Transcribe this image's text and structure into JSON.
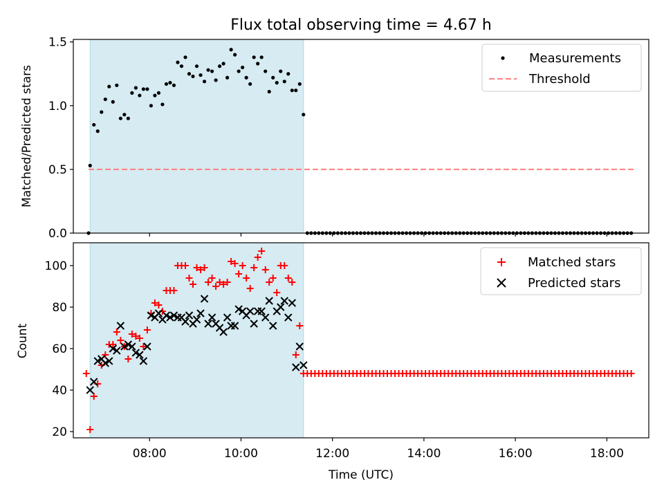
{
  "chart_data": [
    {
      "type": "scatter",
      "title": "Flux total observing time = 4.67 h",
      "ylabel": "Matched/Predicted stars",
      "xlabel": "",
      "ylim": [
        0,
        1.52
      ],
      "yticks": [
        "0.0",
        "0.5",
        "1.0",
        "1.5"
      ],
      "x_ticks": [
        "08:00",
        "10:00",
        "12:00",
        "14:00",
        "16:00",
        "18:00"
      ],
      "xlim": [
        "06:20",
        "18:55"
      ],
      "legend_position": "top-right",
      "grid": false,
      "shaded_interval": [
        "06:42",
        "11:22"
      ],
      "shade_color": "#add8e6",
      "series": [
        {
          "name": "Measurements",
          "marker": "dot",
          "color": "#000000",
          "points": [
            [
              "06:40",
              0.0
            ],
            [
              "06:42",
              0.53
            ],
            [
              "06:47",
              0.85
            ],
            [
              "06:52",
              0.8
            ],
            [
              "06:57",
              0.95
            ],
            [
              "07:02",
              1.05
            ],
            [
              "07:07",
              1.15
            ],
            [
              "07:12",
              1.03
            ],
            [
              "07:17",
              1.16
            ],
            [
              "07:22",
              0.9
            ],
            [
              "07:27",
              0.93
            ],
            [
              "07:32",
              0.9
            ],
            [
              "07:37",
              1.1
            ],
            [
              "07:42",
              1.14
            ],
            [
              "07:47",
              1.08
            ],
            [
              "07:52",
              1.13
            ],
            [
              "07:57",
              1.13
            ],
            [
              "08:02",
              1.0
            ],
            [
              "08:07",
              1.08
            ],
            [
              "08:12",
              1.1
            ],
            [
              "08:17",
              1.01
            ],
            [
              "08:22",
              1.17
            ],
            [
              "08:27",
              1.18
            ],
            [
              "08:32",
              1.16
            ],
            [
              "08:37",
              1.34
            ],
            [
              "08:42",
              1.31
            ],
            [
              "08:47",
              1.38
            ],
            [
              "08:52",
              1.25
            ],
            [
              "08:57",
              1.23
            ],
            [
              "09:02",
              1.31
            ],
            [
              "09:07",
              1.24
            ],
            [
              "09:12",
              1.19
            ],
            [
              "09:17",
              1.28
            ],
            [
              "09:22",
              1.27
            ],
            [
              "09:27",
              1.2
            ],
            [
              "09:32",
              1.31
            ],
            [
              "09:37",
              1.33
            ],
            [
              "09:42",
              1.22
            ],
            [
              "09:47",
              1.44
            ],
            [
              "09:52",
              1.4
            ],
            [
              "09:57",
              1.27
            ],
            [
              "10:02",
              1.3
            ],
            [
              "10:07",
              1.22
            ],
            [
              "10:12",
              1.17
            ],
            [
              "10:17",
              1.38
            ],
            [
              "10:22",
              1.33
            ],
            [
              "10:27",
              1.38
            ],
            [
              "10:32",
              1.27
            ],
            [
              "10:37",
              1.11
            ],
            [
              "10:42",
              1.22
            ],
            [
              "10:47",
              1.18
            ],
            [
              "10:52",
              1.27
            ],
            [
              "10:57",
              1.19
            ],
            [
              "11:02",
              1.25
            ],
            [
              "11:07",
              1.12
            ],
            [
              "11:12",
              1.12
            ],
            [
              "11:17",
              1.17
            ],
            [
              "11:22",
              0.93
            ]
          ]
        },
        {
          "name": "Threshold",
          "marker": "dashed-line",
          "color": "#ff7f7f",
          "points": [
            [
              "06:40",
              0.5
            ],
            [
              "18:35",
              0.5
            ]
          ]
        }
      ],
      "zero_points": {
        "comment_free_range": [
          "11:27",
          "18:35"
        ],
        "step_minutes": 5,
        "value": 0.0,
        "series": "Measurements"
      }
    },
    {
      "type": "scatter",
      "title": "",
      "ylabel": "Count",
      "xlabel": "Time (UTC)",
      "ylim": [
        17,
        111
      ],
      "yticks": [
        "20",
        "40",
        "60",
        "80",
        "100"
      ],
      "x_ticks": [
        "08:00",
        "10:00",
        "12:00",
        "14:00",
        "16:00",
        "18:00"
      ],
      "xlim": [
        "06:20",
        "18:55"
      ],
      "legend_position": "top-right",
      "grid": false,
      "shaded_interval": [
        "06:42",
        "11:22"
      ],
      "shade_color": "#add8e6",
      "series": [
        {
          "name": "Matched stars",
          "marker": "plus",
          "color": "#ff0000",
          "points": [
            [
              "06:37",
              48
            ],
            [
              "06:42",
              21
            ],
            [
              "06:47",
              37
            ],
            [
              "06:52",
              43
            ],
            [
              "06:57",
              52
            ],
            [
              "07:02",
              57
            ],
            [
              "07:07",
              62
            ],
            [
              "07:12",
              62
            ],
            [
              "07:17",
              68
            ],
            [
              "07:22",
              64
            ],
            [
              "07:27",
              61
            ],
            [
              "07:32",
              55
            ],
            [
              "07:37",
              67
            ],
            [
              "07:42",
              66
            ],
            [
              "07:47",
              65
            ],
            [
              "07:52",
              61
            ],
            [
              "07:57",
              69
            ],
            [
              "08:02",
              77
            ],
            [
              "08:07",
              82
            ],
            [
              "08:12",
              81
            ],
            [
              "08:17",
              78
            ],
            [
              "08:22",
              88
            ],
            [
              "08:27",
              88
            ],
            [
              "08:32",
              88
            ],
            [
              "08:37",
              100
            ],
            [
              "08:42",
              100
            ],
            [
              "08:47",
              100
            ],
            [
              "08:52",
              94
            ],
            [
              "08:57",
              91
            ],
            [
              "09:02",
              99
            ],
            [
              "09:07",
              98
            ],
            [
              "09:12",
              99
            ],
            [
              "09:17",
              92
            ],
            [
              "09:22",
              94
            ],
            [
              "09:27",
              90
            ],
            [
              "09:32",
              92
            ],
            [
              "09:37",
              91
            ],
            [
              "09:42",
              92
            ],
            [
              "09:47",
              102
            ],
            [
              "09:52",
              101
            ],
            [
              "09:57",
              96
            ],
            [
              "10:02",
              100
            ],
            [
              "10:07",
              94
            ],
            [
              "10:12",
              89
            ],
            [
              "10:17",
              99
            ],
            [
              "10:22",
              104
            ],
            [
              "10:27",
              107
            ],
            [
              "10:32",
              98
            ],
            [
              "10:37",
              92
            ],
            [
              "10:42",
              94
            ],
            [
              "10:47",
              87
            ],
            [
              "10:52",
              100
            ],
            [
              "10:57",
              100
            ],
            [
              "11:02",
              94
            ],
            [
              "11:07",
              92
            ],
            [
              "11:12",
              57
            ],
            [
              "11:17",
              71
            ],
            [
              "11:22",
              48
            ]
          ]
        },
        {
          "name": "Predicted stars",
          "marker": "x",
          "color": "#000000",
          "points": [
            [
              "06:42",
              40
            ],
            [
              "06:47",
              44
            ],
            [
              "06:52",
              54
            ],
            [
              "06:57",
              55
            ],
            [
              "07:02",
              53
            ],
            [
              "07:07",
              54
            ],
            [
              "07:12",
              60
            ],
            [
              "07:17",
              59
            ],
            [
              "07:22",
              71
            ],
            [
              "07:27",
              61
            ],
            [
              "07:32",
              62
            ],
            [
              "07:37",
              61
            ],
            [
              "07:42",
              58
            ],
            [
              "07:47",
              57
            ],
            [
              "07:52",
              54
            ],
            [
              "07:57",
              61
            ],
            [
              "08:02",
              76
            ],
            [
              "08:07",
              75
            ],
            [
              "08:12",
              77
            ],
            [
              "08:17",
              74
            ],
            [
              "08:22",
              76
            ],
            [
              "08:27",
              75
            ],
            [
              "08:32",
              76
            ],
            [
              "08:37",
              75
            ],
            [
              "08:42",
              75
            ],
            [
              "08:47",
              73
            ],
            [
              "08:52",
              76
            ],
            [
              "08:57",
              72
            ],
            [
              "09:02",
              74
            ],
            [
              "09:07",
              77
            ],
            [
              "09:12",
              84
            ],
            [
              "09:17",
              72
            ],
            [
              "09:22",
              75
            ],
            [
              "09:27",
              72
            ],
            [
              "09:32",
              70
            ],
            [
              "09:37",
              68
            ],
            [
              "09:42",
              75
            ],
            [
              "09:47",
              71
            ],
            [
              "09:52",
              71
            ],
            [
              "09:57",
              79
            ],
            [
              "10:02",
              78
            ],
            [
              "10:07",
              76
            ],
            [
              "10:12",
              78
            ],
            [
              "10:17",
              72
            ],
            [
              "10:22",
              78
            ],
            [
              "10:27",
              78
            ],
            [
              "10:32",
              75
            ],
            [
              "10:37",
              83
            ],
            [
              "10:42",
              71
            ],
            [
              "10:47",
              78
            ],
            [
              "10:52",
              80
            ],
            [
              "10:57",
              83
            ],
            [
              "11:02",
              75
            ],
            [
              "11:07",
              82
            ],
            [
              "11:12",
              51
            ],
            [
              "11:17",
              61
            ],
            [
              "11:22",
              52
            ]
          ]
        }
      ],
      "flat_points": {
        "range": [
          "11:27",
          "18:35"
        ],
        "step_minutes": 5,
        "value": 48,
        "series": "Matched stars"
      }
    }
  ]
}
